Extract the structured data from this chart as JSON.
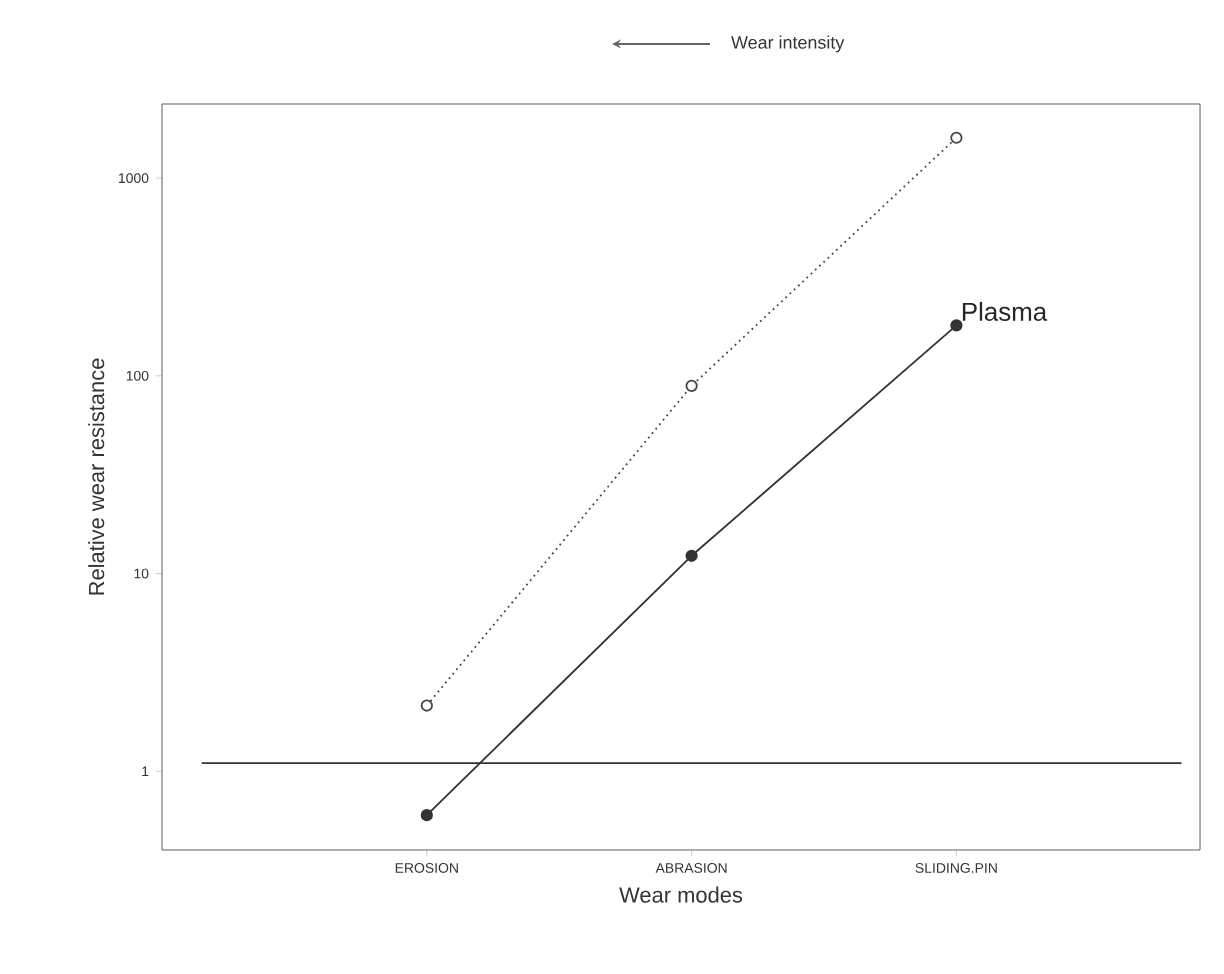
{
  "chart_data": {
    "type": "line",
    "xlabel": "Wear modes",
    "ylabel": "Relative wear resistance",
    "annotations": [
      "Wear intensity"
    ],
    "categories": [
      "EROSION",
      "ABRASION",
      "SLIDING.PIN"
    ],
    "series": [
      {
        "color": "#444444",
        "line_style": "dotted",
        "values": [
          2.15,
          89,
          1600
        ]
      },
      {
        "name": "Plasma",
        "color": "#333333",
        "line_style": "solid",
        "values": [
          0.6,
          12.3,
          180
        ]
      }
    ],
    "log": "y",
    "ylim": [
      0.4,
      2370
    ],
    "yticks": [
      1,
      10,
      100,
      1000
    ],
    "ref_lines": [
      {
        "axis": "y",
        "value": 1.1,
        "color": "#333333"
      }
    ],
    "marker": "circle"
  }
}
